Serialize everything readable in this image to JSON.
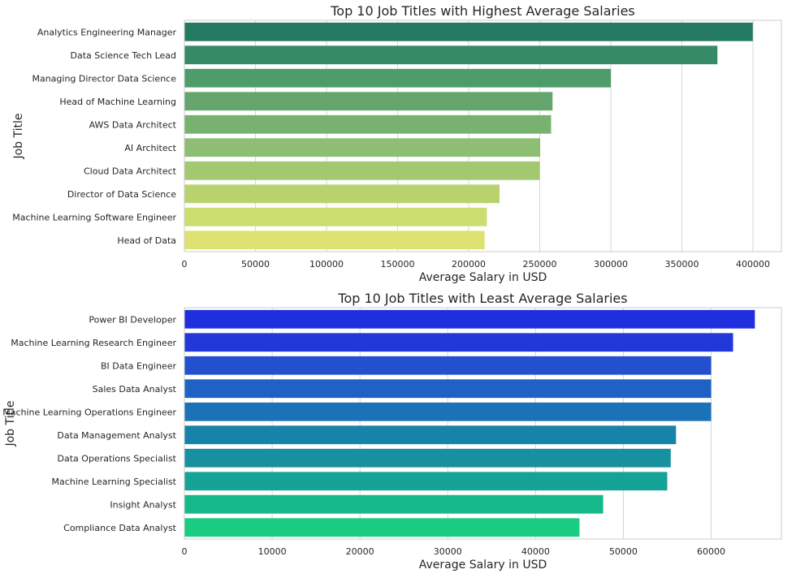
{
  "chart_data": [
    {
      "type": "bar",
      "orientation": "horizontal",
      "title": "Top 10 Job Titles with Highest Average Salaries",
      "xlabel": "Average Salary in USD",
      "ylabel": "Job Title",
      "xlim": [
        0,
        420000
      ],
      "xticks": [
        0,
        50000,
        100000,
        150000,
        200000,
        250000,
        300000,
        350000,
        400000
      ],
      "grid": "x",
      "categories": [
        "Analytics Engineering Manager",
        "Data Science Tech Lead",
        "Managing Director Data Science",
        "Head of Machine Learning",
        "AWS Data Architect",
        "AI Architect",
        "Cloud Data Architect",
        "Director of Data Science",
        "Machine Learning Software Engineer",
        "Head of Data"
      ],
      "values": [
        399880,
        375000,
        300000,
        259000,
        258000,
        250330,
        250000,
        221700,
        212800,
        211200
      ],
      "colors": [
        "#247a62",
        "#368a66",
        "#4e9c69",
        "#65a56e",
        "#78b170",
        "#8dbe73",
        "#a2c96f",
        "#b8d26d",
        "#cbdd6c",
        "#dde370"
      ]
    },
    {
      "type": "bar",
      "orientation": "horizontal",
      "title": "Top 10 Job Titles with Least Average Salaries",
      "xlabel": "Average Salary in USD",
      "ylabel": "Job Title",
      "xlim": [
        0,
        68000
      ],
      "xticks": [
        0,
        10000,
        20000,
        30000,
        40000,
        50000,
        60000
      ],
      "grid": "x",
      "categories": [
        "Power BI Developer",
        "Machine Learning Research Engineer",
        "BI Data Engineer",
        "Sales Data Analyst",
        "Machine Learning Operations Engineer",
        "Data Management Analyst",
        "Data Operations Specialist",
        "Machine Learning Specialist",
        "Insight Analyst",
        "Compliance Data Analyst"
      ],
      "values": [
        64980,
        62500,
        60000,
        60000,
        60000,
        56000,
        55400,
        55000,
        47700,
        45000
      ],
      "colors": [
        "#1f2fde",
        "#2338d8",
        "#2350cf",
        "#1f61c4",
        "#1c72b7",
        "#1883a9",
        "#17909f",
        "#16a397",
        "#15b98b",
        "#1acc82"
      ]
    }
  ]
}
